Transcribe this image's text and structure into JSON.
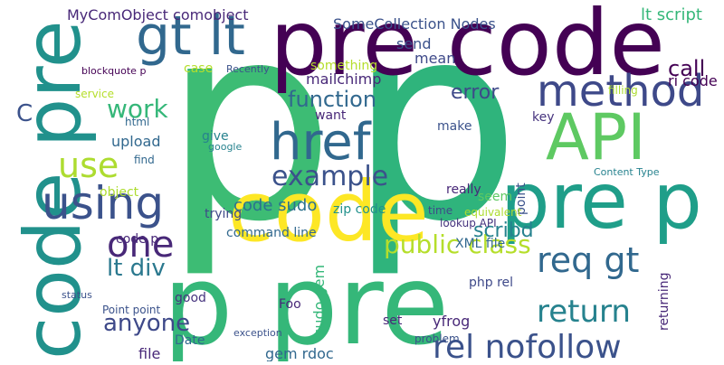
{
  "words": [
    "p",
    "p",
    "pre code",
    "code pre",
    "p pre",
    "code",
    "pre p",
    "API",
    "method",
    "href",
    "using",
    "gt lt",
    "example",
    "function",
    "one",
    "public class",
    "req gt",
    "return",
    "rel nofollow",
    "use",
    "work",
    "call",
    "error",
    "lt script",
    "mailchimp",
    "SomeCollection Nodes",
    "MyComObject comobject",
    "lt div",
    "anyone",
    "C",
    "code sudo",
    "zip code",
    "scribd",
    "XML file",
    "ri code",
    "case",
    "something",
    "send",
    "mean",
    "upload",
    "html",
    "service",
    "find",
    "object",
    "give",
    "trying",
    "code p",
    "good",
    "Point point",
    "Date",
    "file",
    "sudo gem",
    "gem rdoc",
    "php rel",
    "yfrog",
    "problem",
    "set",
    "time",
    "make",
    "really",
    "want",
    "key",
    "Foo",
    "seem",
    "point",
    "Recently",
    "command line",
    "lookup API",
    "equivalent",
    "returning",
    "filling",
    "Content Type",
    "exception",
    "status",
    "google",
    "blockquote p"
  ]
}
